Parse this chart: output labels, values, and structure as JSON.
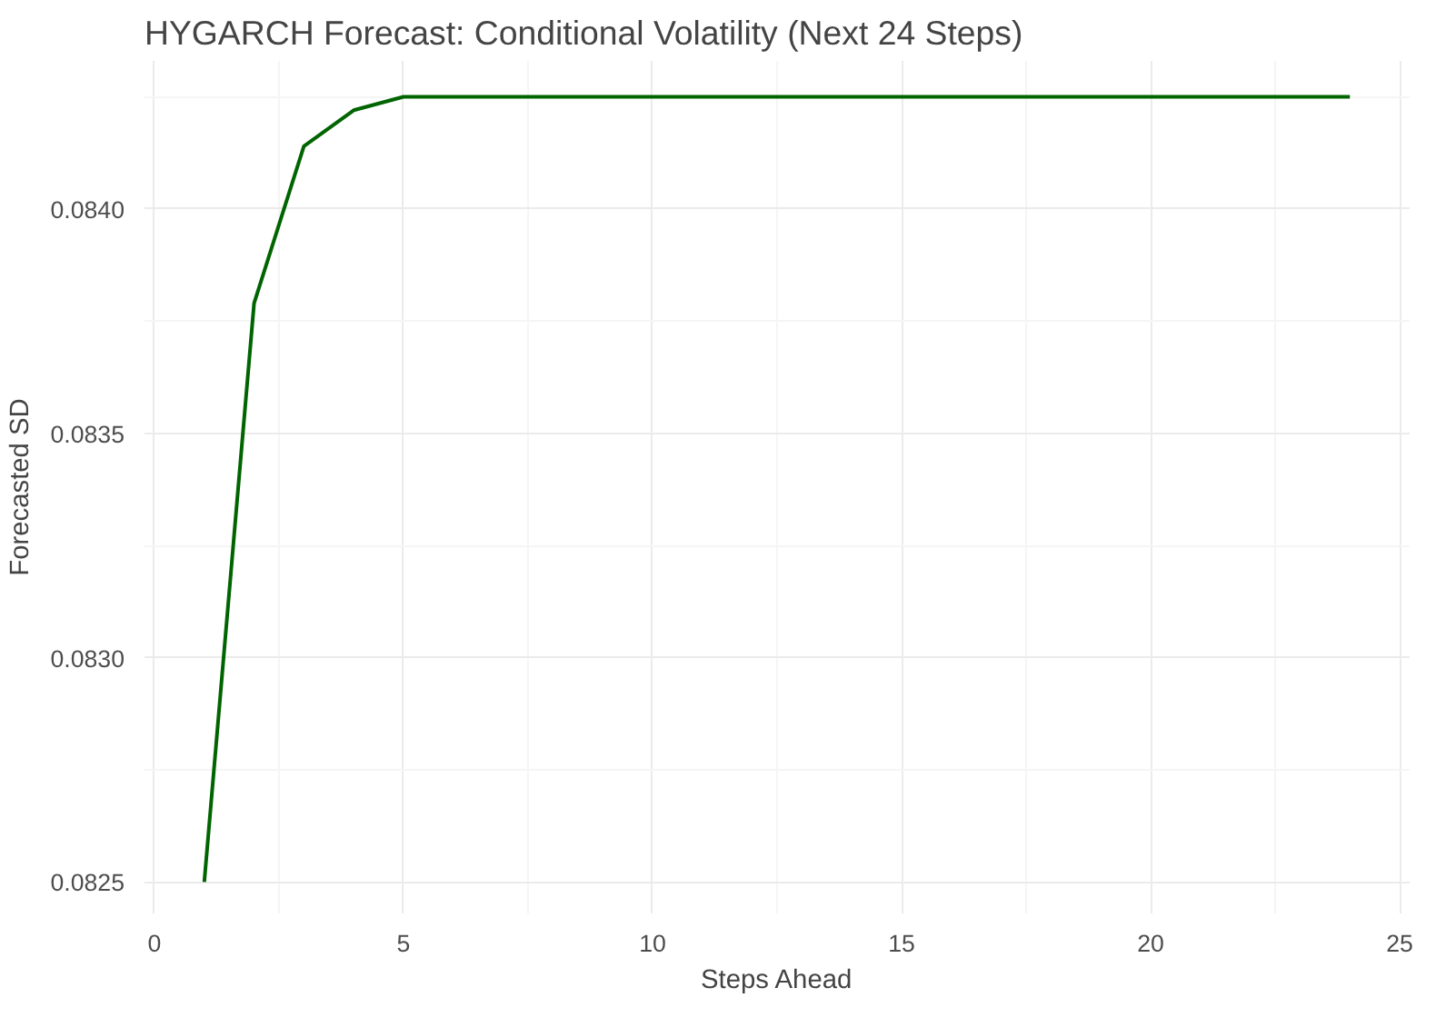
{
  "chart_data": {
    "type": "line",
    "title": "HYGARCH Forecast: Conditional Volatility (Next 24 Steps)",
    "xlabel": "Steps Ahead",
    "ylabel": "Forecasted SD",
    "x": [
      1,
      2,
      3,
      4,
      5,
      6,
      7,
      8,
      9,
      10,
      11,
      12,
      13,
      14,
      15,
      16,
      17,
      18,
      19,
      20,
      21,
      22,
      23,
      24
    ],
    "series": [
      {
        "color": "#006400",
        "values": [
          0.0825,
          0.08379,
          0.08414,
          0.08422,
          0.08425,
          0.08425,
          0.08425,
          0.08425,
          0.08425,
          0.08425,
          0.08425,
          0.08425,
          0.08425,
          0.08425,
          0.08425,
          0.08425,
          0.08425,
          0.08425,
          0.08425,
          0.08425,
          0.08425,
          0.08425,
          0.08425,
          0.08425
        ]
      }
    ],
    "xlim": [
      -0.2,
      25.2
    ],
    "ylim": [
      0.08243,
      0.08433
    ],
    "xticks": [
      0,
      5,
      10,
      15,
      20,
      25
    ],
    "yticks": [
      {
        "value": 0.0825,
        "label": "0.0825"
      },
      {
        "value": 0.083,
        "label": "0.0830"
      },
      {
        "value": 0.0835,
        "label": "0.0835"
      },
      {
        "value": 0.084,
        "label": "0.0840"
      }
    ],
    "grid": true,
    "marker": "none",
    "line_style": "solid"
  }
}
